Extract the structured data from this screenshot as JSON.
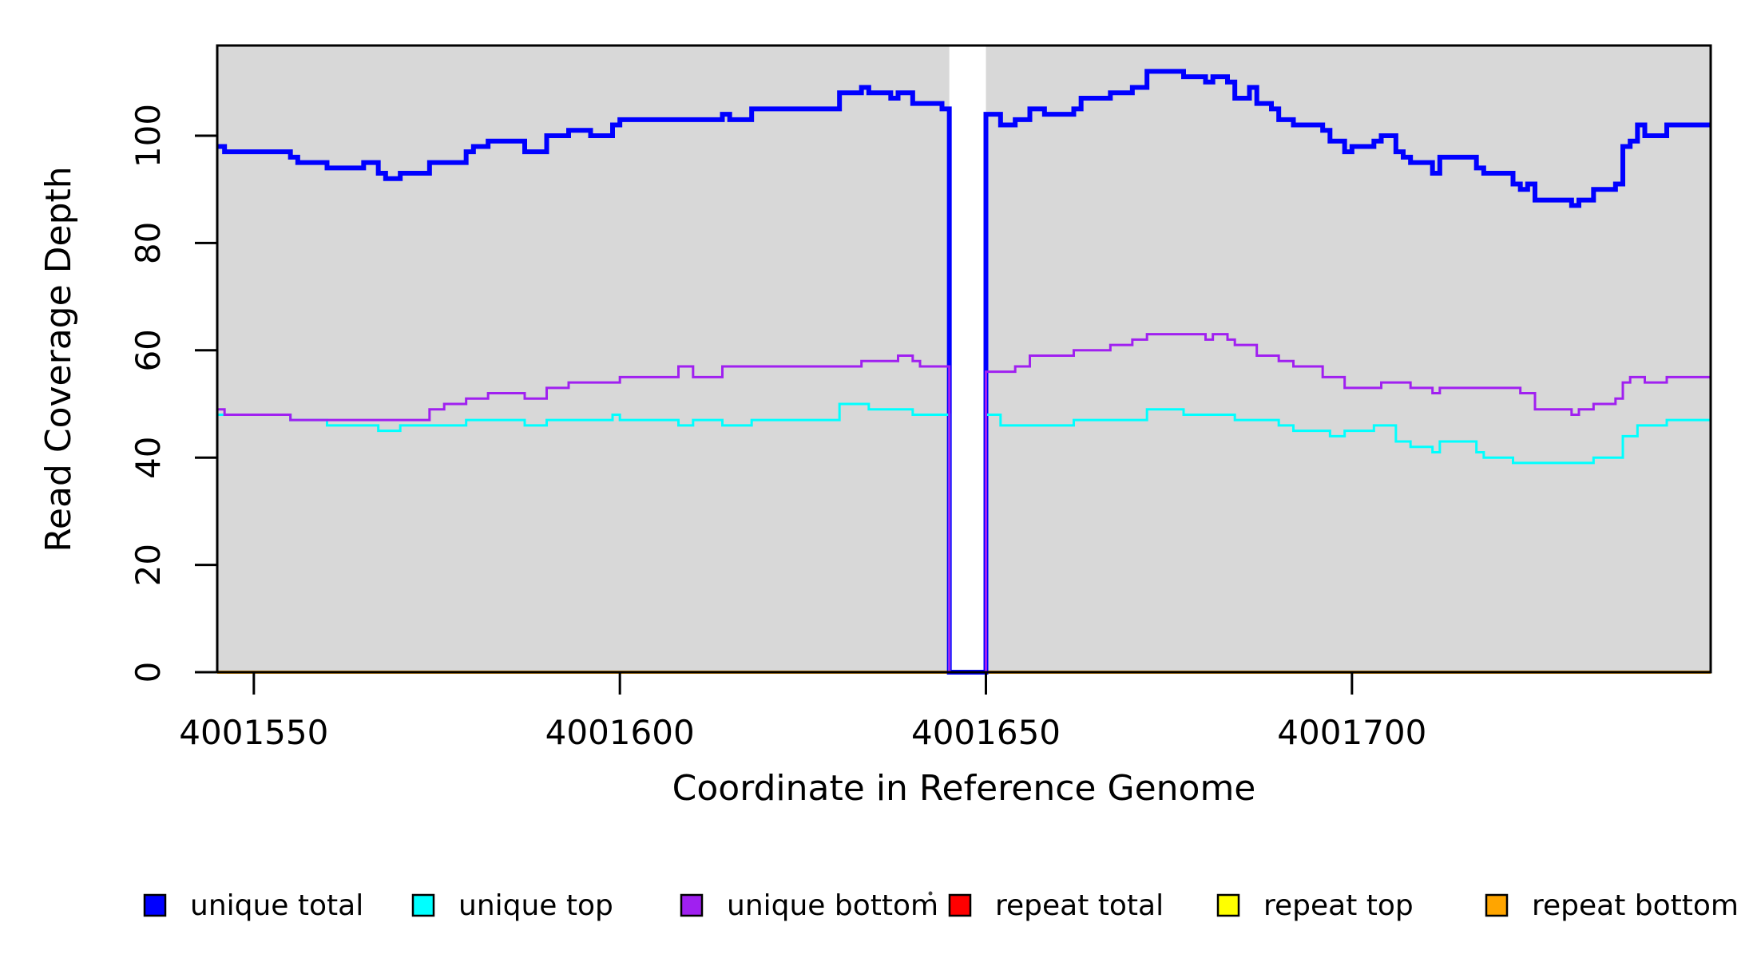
{
  "figure": {
    "background": "#FFFFFF"
  },
  "plot": {
    "bg_color": "#D8D8D8",
    "border_color": "#000000",
    "gap_fill": "#FFFFFF"
  },
  "axes": {
    "x": {
      "title": "Coordinate in Reference Genome",
      "tick_labels": [
        "4001550",
        "4001600",
        "4001650",
        "4001700"
      ],
      "tick_values": [
        4001550,
        4001600,
        4001650,
        4001700
      ]
    },
    "y": {
      "title": "Read Coverage Depth",
      "tick_labels": [
        "0",
        "20",
        "40",
        "60",
        "80",
        "100"
      ],
      "tick_values": [
        0,
        20,
        40,
        60,
        80,
        100
      ]
    }
  },
  "legend": {
    "items": [
      {
        "label": "unique total",
        "color": "#0000FF"
      },
      {
        "label": "unique top",
        "color": "#00FFFF"
      },
      {
        "label": "unique bottom",
        "color": "#A020F0"
      },
      {
        "label": "repeat total",
        "color": "#FF0000"
      },
      {
        "label": "repeat top",
        "color": "#FFFF00"
      },
      {
        "label": "repeat bottom",
        "color": "#FFA500"
      }
    ]
  },
  "chart_data": {
    "type": "line",
    "step": true,
    "title": "",
    "xlabel": "Coordinate in Reference Genome",
    "ylabel": "Read Coverage Depth",
    "x_start": 4001545,
    "x_step": 1,
    "n_points": 205,
    "xlim": [
      4001545,
      4001749
    ],
    "ylim": [
      0,
      117
    ],
    "x_ticks": [
      4001550,
      4001600,
      4001650,
      4001700
    ],
    "y_ticks": [
      0,
      20,
      40,
      60,
      80,
      100
    ],
    "grid": false,
    "legend_position": "bottom",
    "gap_region": {
      "start": 4001645,
      "end": 4001650,
      "note": "coverage drops to 0; background band is white here"
    },
    "series": [
      {
        "name": "repeat total",
        "color": "#FF0000",
        "line_width": 4,
        "values_rle": [
          [
            0,
            205
          ]
        ]
      },
      {
        "name": "repeat top",
        "color": "#FFFF00",
        "line_width": 4,
        "values_rle": [
          [
            0,
            205
          ]
        ]
      },
      {
        "name": "repeat bottom",
        "color": "#FFA500",
        "line_width": 4,
        "values_rle": [
          [
            0,
            205
          ]
        ]
      },
      {
        "name": "unique total",
        "color": "#0000FF",
        "line_width": 6,
        "values_rle": [
          [
            98,
            1
          ],
          [
            97,
            9
          ],
          [
            96,
            1
          ],
          [
            95,
            4
          ],
          [
            94,
            5
          ],
          [
            95,
            2
          ],
          [
            93,
            1
          ],
          [
            92,
            2
          ],
          [
            93,
            4
          ],
          [
            95,
            5
          ],
          [
            97,
            1
          ],
          [
            98,
            2
          ],
          [
            99,
            5
          ],
          [
            97,
            3
          ],
          [
            100,
            3
          ],
          [
            101,
            3
          ],
          [
            100,
            3
          ],
          [
            102,
            1
          ],
          [
            103,
            14
          ],
          [
            104,
            1
          ],
          [
            103,
            3
          ],
          [
            105,
            12
          ],
          [
            108,
            3
          ],
          [
            109,
            1
          ],
          [
            108,
            3
          ],
          [
            107,
            1
          ],
          [
            108,
            2
          ],
          [
            106,
            4
          ],
          [
            105,
            1
          ],
          [
            0,
            5
          ],
          [
            104,
            2
          ],
          [
            102,
            2
          ],
          [
            103,
            2
          ],
          [
            105,
            2
          ],
          [
            104,
            4
          ],
          [
            105,
            1
          ],
          [
            107,
            4
          ],
          [
            108,
            3
          ],
          [
            109,
            2
          ],
          [
            112,
            5
          ],
          [
            111,
            3
          ],
          [
            110,
            1
          ],
          [
            111,
            2
          ],
          [
            110,
            1
          ],
          [
            107,
            2
          ],
          [
            109,
            1
          ],
          [
            106,
            2
          ],
          [
            105,
            1
          ],
          [
            103,
            2
          ],
          [
            102,
            4
          ],
          [
            101,
            1
          ],
          [
            99,
            2
          ],
          [
            97,
            1
          ],
          [
            98,
            3
          ],
          [
            99,
            1
          ],
          [
            100,
            2
          ],
          [
            97,
            1
          ],
          [
            96,
            1
          ],
          [
            95,
            3
          ],
          [
            93,
            1
          ],
          [
            96,
            5
          ],
          [
            94,
            1
          ],
          [
            93,
            4
          ],
          [
            91,
            1
          ],
          [
            90,
            1
          ],
          [
            91,
            1
          ],
          [
            88,
            5
          ],
          [
            87,
            1
          ],
          [
            88,
            2
          ],
          [
            90,
            3
          ],
          [
            91,
            1
          ],
          [
            98,
            1
          ],
          [
            99,
            1
          ],
          [
            102,
            1
          ],
          [
            100,
            3
          ],
          [
            102,
            7
          ]
        ]
      },
      {
        "name": "unique top",
        "color": "#00FFFF",
        "line_width": 3,
        "values_rle": [
          [
            48,
            10
          ],
          [
            47,
            5
          ],
          [
            46,
            7
          ],
          [
            45,
            3
          ],
          [
            46,
            9
          ],
          [
            47,
            8
          ],
          [
            46,
            3
          ],
          [
            47,
            9
          ],
          [
            48,
            1
          ],
          [
            47,
            8
          ],
          [
            46,
            2
          ],
          [
            47,
            4
          ],
          [
            46,
            4
          ],
          [
            47,
            12
          ],
          [
            50,
            4
          ],
          [
            49,
            6
          ],
          [
            48,
            5
          ],
          [
            0,
            5
          ],
          [
            48,
            2
          ],
          [
            46,
            10
          ],
          [
            47,
            10
          ],
          [
            49,
            5
          ],
          [
            48,
            7
          ],
          [
            47,
            6
          ],
          [
            46,
            2
          ],
          [
            45,
            5
          ],
          [
            44,
            2
          ],
          [
            45,
            4
          ],
          [
            46,
            3
          ],
          [
            43,
            2
          ],
          [
            42,
            3
          ],
          [
            41,
            1
          ],
          [
            43,
            5
          ],
          [
            41,
            1
          ],
          [
            40,
            4
          ],
          [
            39,
            3
          ],
          [
            39,
            8
          ],
          [
            40,
            4
          ],
          [
            44,
            2
          ],
          [
            46,
            1
          ],
          [
            46,
            3
          ],
          [
            47,
            7
          ]
        ]
      },
      {
        "name": "unique bottom",
        "color": "#A020F0",
        "line_width": 3,
        "values_rle": [
          [
            49,
            1
          ],
          [
            48,
            9
          ],
          [
            47,
            19
          ],
          [
            49,
            2
          ],
          [
            50,
            3
          ],
          [
            51,
            3
          ],
          [
            52,
            5
          ],
          [
            51,
            3
          ],
          [
            53,
            3
          ],
          [
            54,
            7
          ],
          [
            55,
            8
          ],
          [
            57,
            2
          ],
          [
            55,
            4
          ],
          [
            57,
            19
          ],
          [
            58,
            5
          ],
          [
            59,
            2
          ],
          [
            58,
            1
          ],
          [
            57,
            4
          ],
          [
            0,
            5
          ],
          [
            56,
            4
          ],
          [
            57,
            2
          ],
          [
            59,
            6
          ],
          [
            60,
            5
          ],
          [
            61,
            3
          ],
          [
            62,
            2
          ],
          [
            63,
            8
          ],
          [
            62,
            1
          ],
          [
            63,
            2
          ],
          [
            62,
            1
          ],
          [
            61,
            3
          ],
          [
            59,
            3
          ],
          [
            58,
            2
          ],
          [
            57,
            4
          ],
          [
            55,
            3
          ],
          [
            53,
            5
          ],
          [
            54,
            4
          ],
          [
            53,
            3
          ],
          [
            52,
            1
          ],
          [
            53,
            11
          ],
          [
            52,
            2
          ],
          [
            49,
            5
          ],
          [
            48,
            1
          ],
          [
            49,
            2
          ],
          [
            50,
            3
          ],
          [
            51,
            1
          ],
          [
            54,
            1
          ],
          [
            55,
            2
          ],
          [
            54,
            3
          ],
          [
            55,
            7
          ]
        ]
      }
    ]
  }
}
